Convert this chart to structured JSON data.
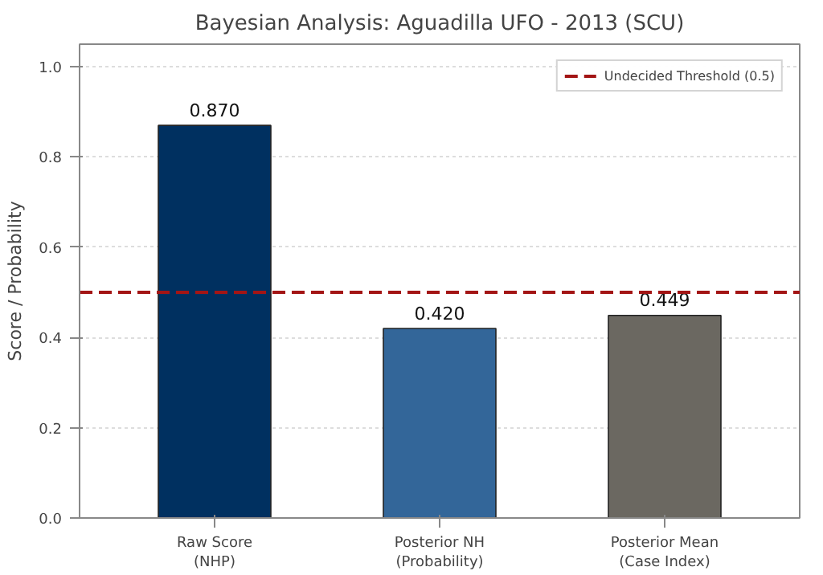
{
  "chart_data": {
    "type": "bar",
    "title": "Bayesian Analysis: Aguadilla UFO - 2013 (SCU)",
    "ylabel": "Score / Probability",
    "categories": [
      "Raw Score\n(NHP)",
      "Posterior NH\n(Probability)",
      "Posterior Mean\n(Case Index)"
    ],
    "values": [
      0.87,
      0.42,
      0.449
    ],
    "value_labels": [
      "0.870",
      "0.420",
      "0.449"
    ],
    "colors": [
      "#003060",
      "#336699",
      "#6b6861"
    ],
    "ylim": [
      0,
      1.05
    ],
    "yticks": [
      {
        "value": 0,
        "label": "0.0"
      },
      0.2,
      0.4,
      0.6,
      0.8,
      {
        "value": 1,
        "label": "1.0"
      }
    ],
    "grid": "y",
    "legend": "top right",
    "ref_lines": [
      {
        "axis": "y",
        "value": 0.5,
        "label": "Undecided Threshold (0.5)",
        "color": "#a31515",
        "line_style": "dashed"
      }
    ]
  }
}
